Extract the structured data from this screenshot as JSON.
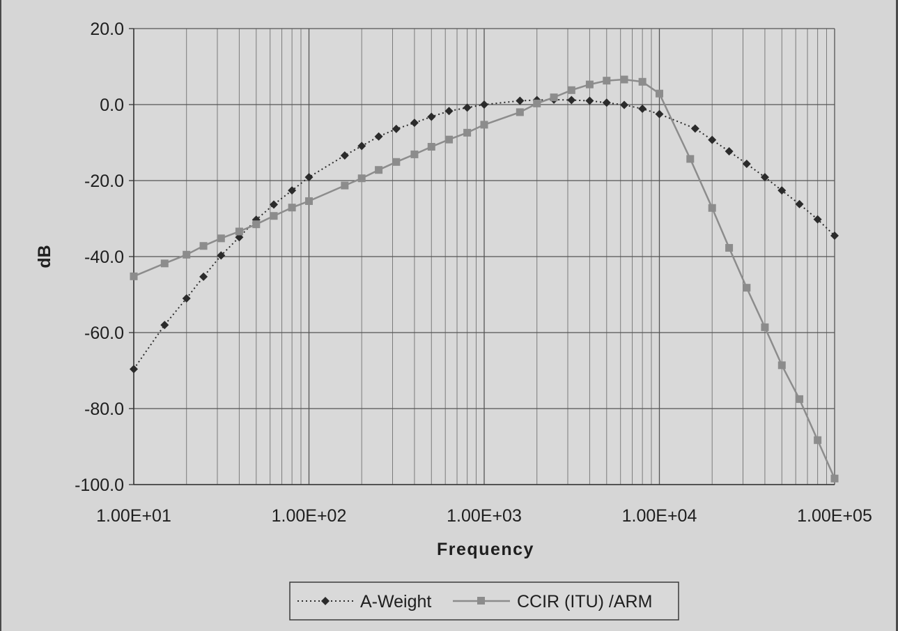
{
  "chart_data": {
    "type": "line",
    "xlabel": "Frequency",
    "ylabel": "dB",
    "xscale": "log",
    "xlim": [
      10,
      100000
    ],
    "ylim": [
      -100,
      20
    ],
    "x_tick_labels": [
      "1.00E+01",
      "1.00E+02",
      "1.00E+03",
      "1.00E+04",
      "1.00E+05"
    ],
    "y_tick_labels": [
      "20.0",
      "0.0",
      "-20.0",
      "-40.0",
      "-60.0",
      "-80.0",
      "-100.0"
    ],
    "grid": true,
    "legend_position": "bottom",
    "series": [
      {
        "name": "A-Weight",
        "style": "dotted",
        "marker": "diamond",
        "color": "#2b2b2b",
        "points": [
          [
            10,
            -69.6
          ],
          [
            15,
            -58.0
          ],
          [
            20,
            -51.0
          ],
          [
            25,
            -45.3
          ],
          [
            31.5,
            -39.7
          ],
          [
            40,
            -34.9
          ],
          [
            50,
            -30.3
          ],
          [
            63,
            -26.3
          ],
          [
            80,
            -22.6
          ],
          [
            100,
            -19.1
          ],
          [
            160,
            -13.4
          ],
          [
            200,
            -10.9
          ],
          [
            250,
            -8.4
          ],
          [
            315,
            -6.4
          ],
          [
            400,
            -4.8
          ],
          [
            500,
            -3.2
          ],
          [
            630,
            -1.7
          ],
          [
            800,
            -0.8
          ],
          [
            1000,
            0.0
          ],
          [
            1600,
            1.0
          ],
          [
            2000,
            1.2
          ],
          [
            2500,
            1.3
          ],
          [
            3150,
            1.2
          ],
          [
            4000,
            1.0
          ],
          [
            5000,
            0.5
          ],
          [
            6300,
            -0.1
          ],
          [
            8000,
            -1.1
          ],
          [
            10000,
            -2.5
          ],
          [
            16000,
            -6.3
          ],
          [
            20000,
            -9.3
          ],
          [
            25000,
            -12.3
          ],
          [
            31500,
            -15.6
          ],
          [
            40000,
            -19.1
          ],
          [
            50000,
            -22.6
          ],
          [
            63000,
            -26.2
          ],
          [
            80000,
            -30.2
          ],
          [
            100000,
            -34.5
          ]
        ]
      },
      {
        "name": "CCIR (ITU) /ARM",
        "style": "solid",
        "marker": "square",
        "color": "#8c8c8c",
        "points": [
          [
            10,
            -45.2
          ],
          [
            15,
            -41.8
          ],
          [
            20,
            -39.5
          ],
          [
            25,
            -37.2
          ],
          [
            31.5,
            -35.2
          ],
          [
            40,
            -33.4
          ],
          [
            50,
            -31.5
          ],
          [
            63,
            -29.3
          ],
          [
            80,
            -27.1
          ],
          [
            100,
            -25.4
          ],
          [
            160,
            -21.3
          ],
          [
            200,
            -19.4
          ],
          [
            250,
            -17.2
          ],
          [
            315,
            -15.1
          ],
          [
            400,
            -13.1
          ],
          [
            500,
            -11.1
          ],
          [
            630,
            -9.2
          ],
          [
            800,
            -7.4
          ],
          [
            1000,
            -5.3
          ],
          [
            1600,
            -2.0
          ],
          [
            2000,
            0.3
          ],
          [
            2500,
            1.9
          ],
          [
            3150,
            3.8
          ],
          [
            4000,
            5.3
          ],
          [
            5000,
            6.3
          ],
          [
            6300,
            6.6
          ],
          [
            8000,
            6.0
          ],
          [
            10000,
            2.9
          ],
          [
            15000,
            -14.3
          ],
          [
            20000,
            -27.2
          ],
          [
            25000,
            -37.7
          ],
          [
            31500,
            -48.2
          ],
          [
            40000,
            -58.6
          ],
          [
            50000,
            -68.6
          ],
          [
            63000,
            -77.5
          ],
          [
            80000,
            -88.3
          ],
          [
            100000,
            -98.4
          ]
        ]
      }
    ]
  }
}
